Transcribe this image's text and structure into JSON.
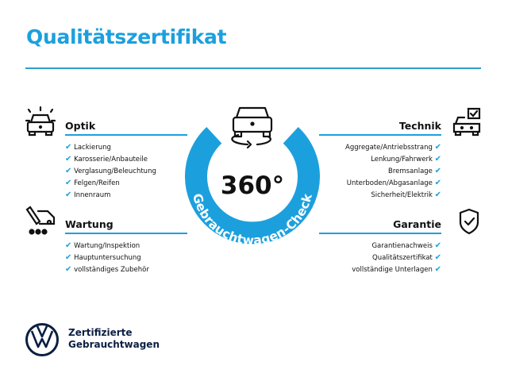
{
  "header": {
    "title": "Qualitätszertifikat"
  },
  "center": {
    "value": "360°",
    "ring_text": "Gebrauchtwagen-Check",
    "color": "#1ca0dd"
  },
  "check_icon": "✔",
  "sections": {
    "optik": {
      "title": "Optik",
      "icon": "car-lights-icon",
      "items": [
        "Lackierung",
        "Karosserie/Anbauteile",
        "Verglasung/Beleuchtung",
        "Felgen/Reifen",
        "Innenraum"
      ]
    },
    "wartung": {
      "title": "Wartung",
      "icon": "service-tools-icon",
      "items": [
        "Wartung/Inspektion",
        "Hauptuntersuchung",
        "vollständiges Zubehör"
      ]
    },
    "technik": {
      "title": "Technik",
      "icon": "car-checklist-icon",
      "items": [
        "Aggregate/Antriebsstrang",
        "Lenkung/Fahrwerk",
        "Bremsanlage",
        "Unterboden/Abgasanlage",
        "Sicherheit/Elektrik"
      ]
    },
    "garantie": {
      "title": "Garantie",
      "icon": "shield-check-icon",
      "items": [
        "Garantienachweis",
        "Qualitätszertifikat",
        "vollständige Unterlagen"
      ]
    }
  },
  "brand": {
    "line1": "Zertifizierte",
    "line2": "Gebrauchtwagen",
    "logo": "vw-logo"
  }
}
